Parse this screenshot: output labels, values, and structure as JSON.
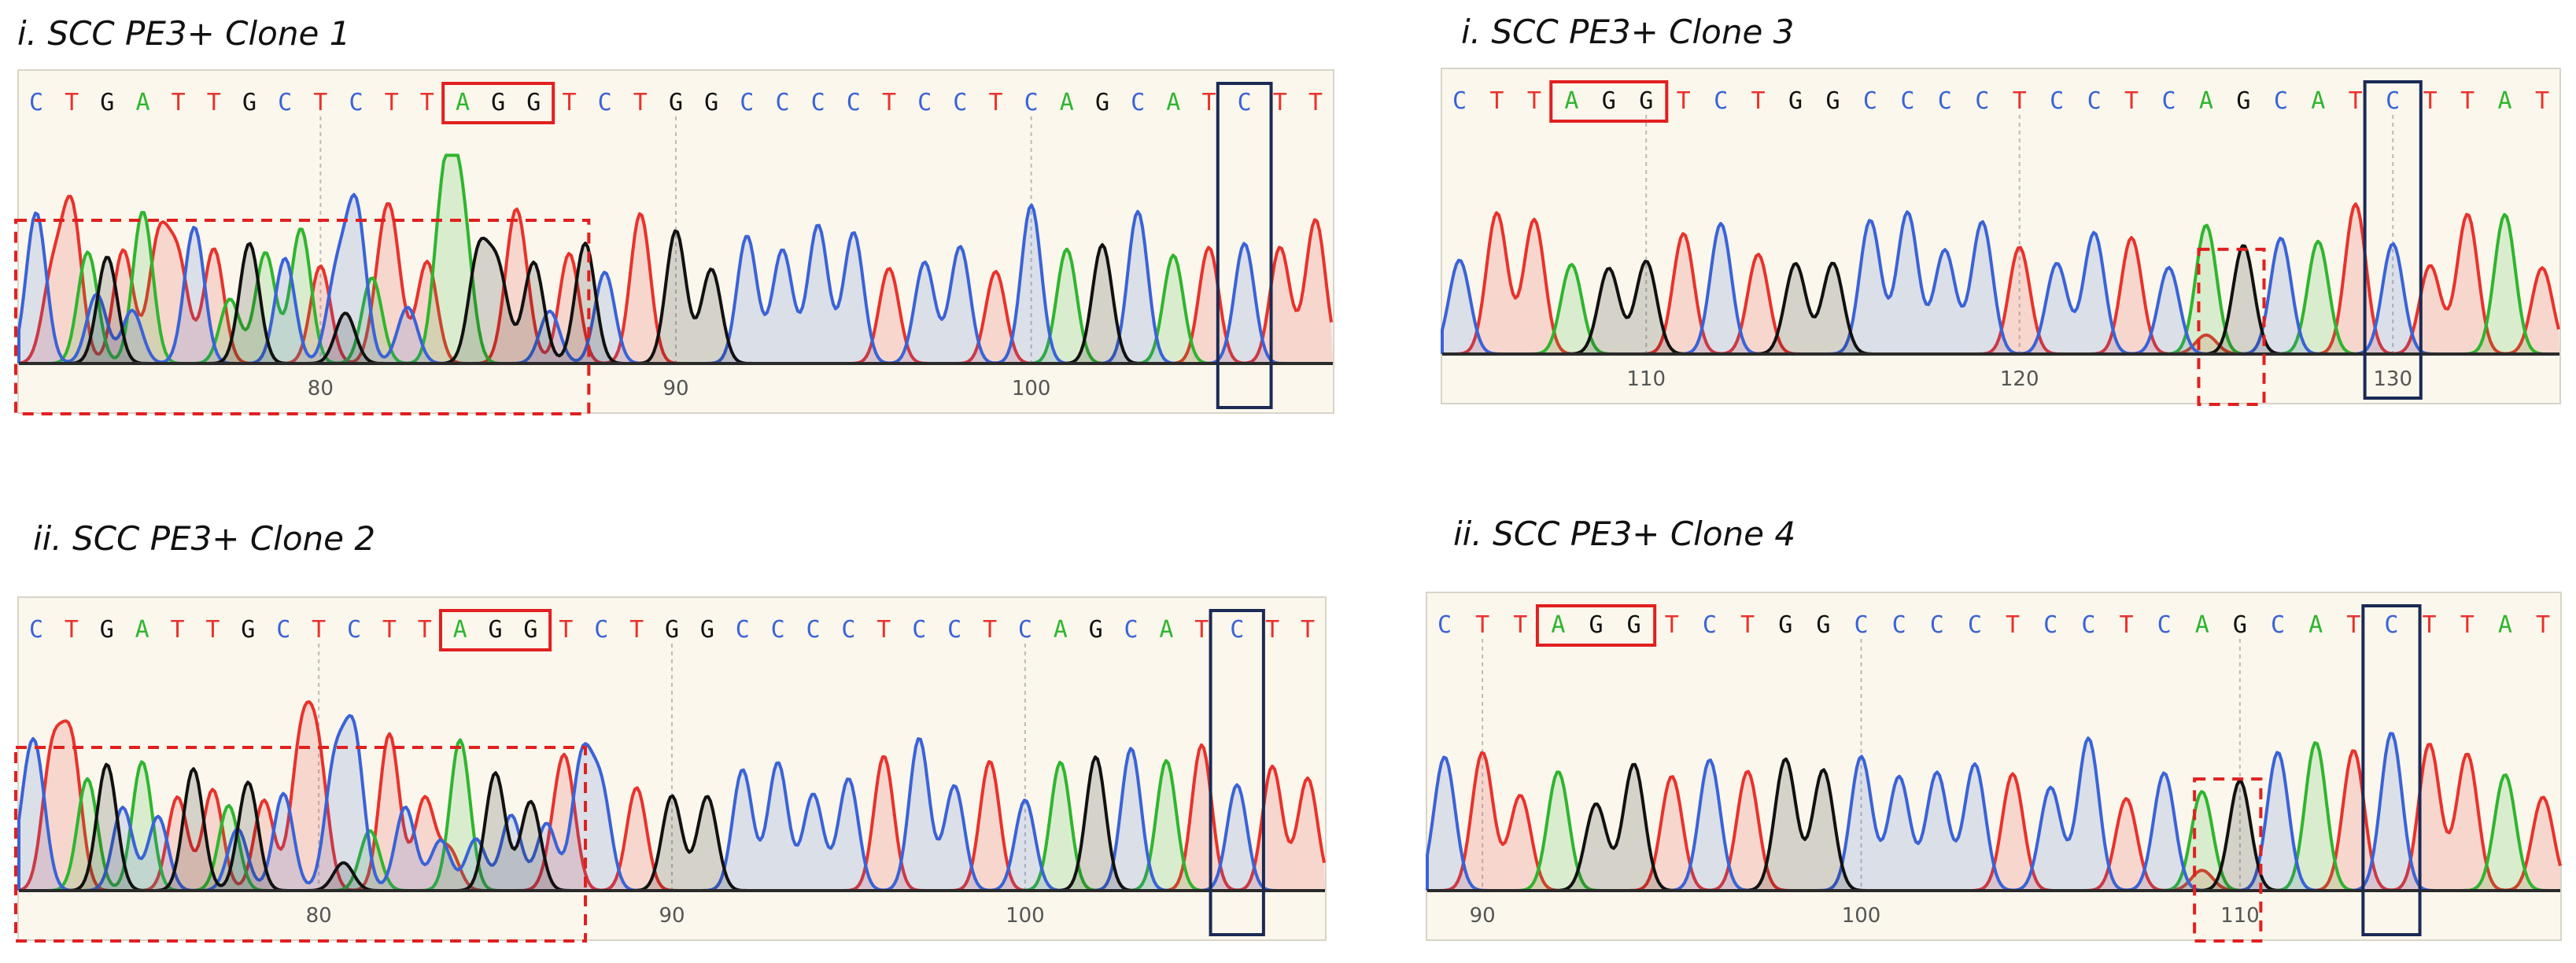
{
  "colors": {
    "A": "#2fb52f",
    "C": "#3a63d6",
    "G": "#111111",
    "T": "#e8322c",
    "pam_box": "#e02020",
    "edit_box": "#1b2a55",
    "mismatch_box": "#e02020"
  },
  "chart_data": [
    {
      "type": "chromatogram",
      "title": "i. SCC PE3+ Clone 1",
      "sequence": [
        "C",
        "T",
        "G",
        "A",
        "T",
        "T",
        "G",
        "C",
        "T",
        "C",
        "T",
        "T",
        "A",
        "G",
        "G",
        "T",
        "C",
        "T",
        "G",
        "G",
        "C",
        "C",
        "C",
        "C",
        "T",
        "C",
        "C",
        "T",
        "C",
        "A",
        "G",
        "C",
        "A",
        "T",
        "C",
        "T",
        "T"
      ],
      "x_ticks": [
        80,
        90,
        100
      ],
      "tick_base_index": [
        8,
        18,
        28
      ],
      "pam_box": {
        "from": 12,
        "to": 14
      },
      "edit_box": {
        "index": 34
      },
      "dashed_box": {
        "from": -1,
        "to": 15
      },
      "mixed_region": {
        "from": 0,
        "to": 15
      }
    },
    {
      "type": "chromatogram",
      "title": "i. SCC PE3+ Clone 3",
      "sequence": [
        "C",
        "T",
        "T",
        "A",
        "G",
        "G",
        "T",
        "C",
        "T",
        "G",
        "G",
        "C",
        "C",
        "C",
        "C",
        "T",
        "C",
        "C",
        "T",
        "C",
        "A",
        "G",
        "C",
        "A",
        "T",
        "C",
        "T",
        "T",
        "A",
        "T"
      ],
      "x_ticks": [
        110,
        120,
        130
      ],
      "tick_base_index": [
        5,
        15,
        25
      ],
      "pam_box": {
        "from": 3,
        "to": 5
      },
      "edit_box": {
        "index": 25
      },
      "dashed_box": {
        "from": 20,
        "to": 21
      },
      "secondary_peak": {
        "index": 20
      }
    },
    {
      "type": "chromatogram",
      "title": "ii. SCC PE3+ Clone 2",
      "sequence": [
        "C",
        "T",
        "G",
        "A",
        "T",
        "T",
        "G",
        "C",
        "T",
        "C",
        "T",
        "T",
        "A",
        "G",
        "G",
        "T",
        "C",
        "T",
        "G",
        "G",
        "C",
        "C",
        "C",
        "C",
        "T",
        "C",
        "C",
        "T",
        "C",
        "A",
        "G",
        "C",
        "A",
        "T",
        "C",
        "T",
        "T"
      ],
      "x_ticks": [
        80,
        90,
        100
      ],
      "tick_base_index": [
        8,
        18,
        28
      ],
      "pam_box": {
        "from": 12,
        "to": 14
      },
      "edit_box": {
        "index": 34
      },
      "dashed_box": {
        "from": -1,
        "to": 15
      },
      "mixed_region": {
        "from": 0,
        "to": 15
      }
    },
    {
      "type": "chromatogram",
      "title": "ii. SCC PE3+ Clone 4",
      "sequence": [
        "C",
        "T",
        "T",
        "A",
        "G",
        "G",
        "T",
        "C",
        "T",
        "G",
        "G",
        "C",
        "C",
        "C",
        "C",
        "T",
        "C",
        "C",
        "T",
        "C",
        "A",
        "G",
        "C",
        "A",
        "T",
        "C",
        "T",
        "T",
        "A",
        "T"
      ],
      "x_ticks": [
        90,
        100,
        110
      ],
      "tick_base_index": [
        1,
        11,
        21
      ],
      "pam_box": {
        "from": 3,
        "to": 5
      },
      "edit_box": {
        "index": 25
      },
      "dashed_box": {
        "from": 20,
        "to": 21
      },
      "secondary_peak": {
        "index": 20
      }
    }
  ]
}
